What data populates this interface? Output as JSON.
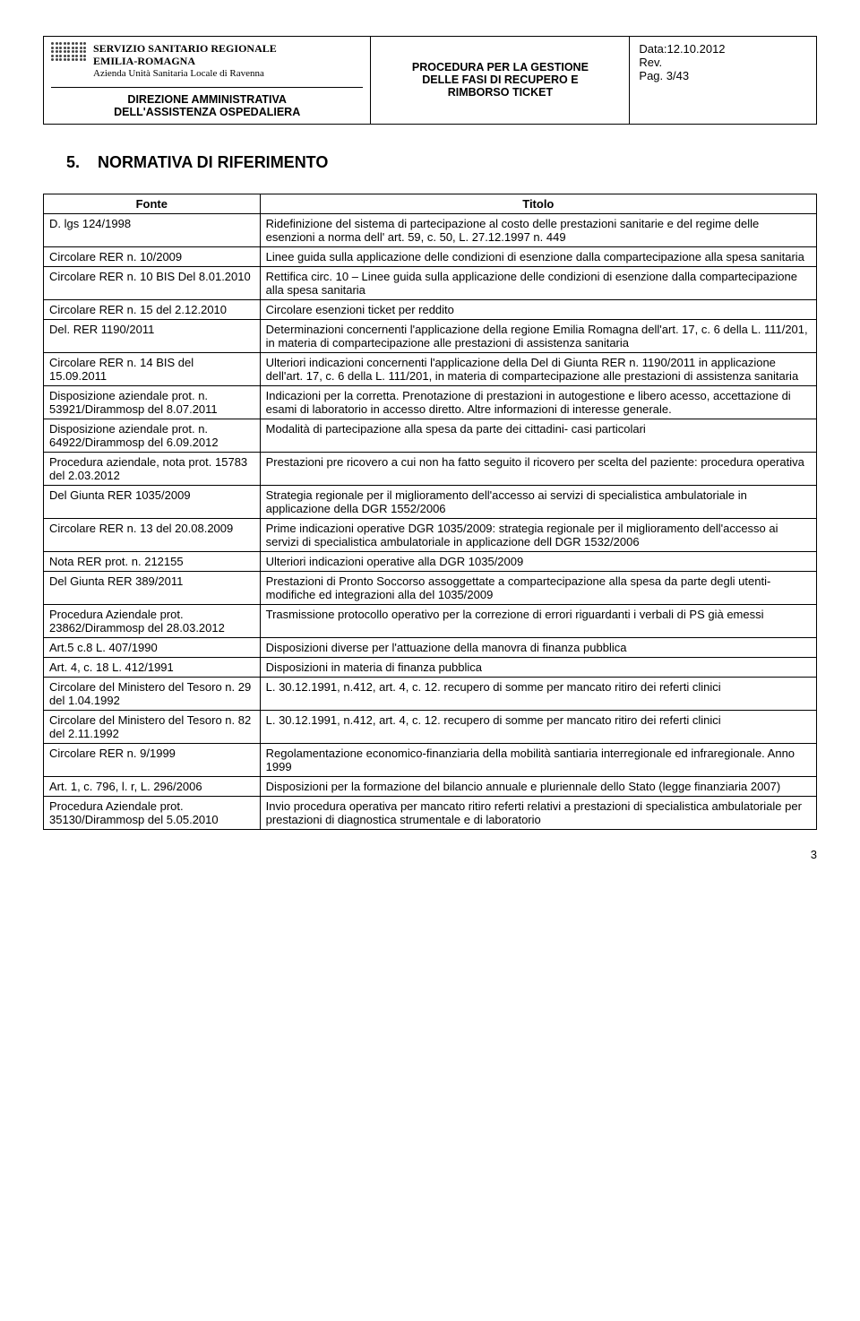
{
  "header": {
    "brand_line1": "SERVIZIO SANITARIO REGIONALE",
    "brand_line2": "EMILIA-ROMAGNA",
    "brand_line3": "Azienda Unità Sanitaria Locale di Ravenna",
    "dept_line1": "DIREZIONE AMMINISTRATIVA",
    "dept_line2": "DELL'ASSISTENZA OSPEDALIERA",
    "doc_title_line1": "PROCEDURA PER LA GESTIONE",
    "doc_title_line2": "DELLE FASI DI RECUPERO E",
    "doc_title_line3": "RIMBORSO TICKET",
    "date_label": "Data:12.10.2012",
    "rev_label": "Rev.",
    "page_label": "Pag. 3/43"
  },
  "section_number": "5.",
  "section_title": "NORMATIVA DI RIFERIMENTO",
  "table": {
    "col_fonte": "Fonte",
    "col_titolo": "Titolo",
    "rows": [
      {
        "fonte": "D. lgs 124/1998",
        "titolo": "Ridefinizione del sistema di partecipazione al costo delle prestazioni sanitarie e del regime delle esenzioni a norma dell' art. 59, c. 50, L. 27.12.1997 n. 449"
      },
      {
        "fonte": "Circolare RER n. 10/2009",
        "titolo": "Linee guida sulla applicazione delle condizioni di esenzione dalla compartecipazione alla spesa sanitaria"
      },
      {
        "fonte": "Circolare RER n. 10 BIS Del 8.01.2010",
        "titolo": "Rettifica circ. 10 – Linee guida sulla applicazione delle condizioni di esenzione dalla compartecipazione alla spesa sanitaria"
      },
      {
        "fonte": "Circolare RER n. 15 del 2.12.2010",
        "titolo": "Circolare esenzioni ticket per reddito"
      },
      {
        "fonte": "Del. RER 1190/2011",
        "titolo": "Determinazioni concernenti l'applicazione della regione Emilia Romagna dell'art. 17, c. 6 della L. 111/201, in materia di compartecipazione alle prestazioni di assistenza sanitaria"
      },
      {
        "fonte": "Circolare RER n. 14 BIS del 15.09.2011",
        "titolo": "Ulteriori indicazioni concernenti l'applicazione della Del di Giunta RER n. 1190/2011 in applicazione dell'art. 17, c. 6 della L. 111/201, in materia di compartecipazione alle prestazioni di assistenza sanitaria"
      },
      {
        "fonte": "Disposizione aziendale prot. n. 53921/Dirammosp del 8.07.2011",
        "titolo": "Indicazioni per la corretta. Prenotazione di prestazioni in autogestione e libero acesso, accettazione di esami di laboratorio in accesso diretto. Altre informazioni di interesse generale."
      },
      {
        "fonte": "Disposizione aziendale prot. n. 64922/Dirammosp del 6.09.2012",
        "titolo": "Modalità di partecipazione alla spesa da parte dei cittadini- casi particolari"
      },
      {
        "fonte": "Procedura aziendale, nota prot. 15783 del 2.03.2012",
        "titolo": "Prestazioni pre ricovero a cui non ha fatto seguito il ricovero per scelta del paziente: procedura operativa"
      },
      {
        "fonte": "Del Giunta RER 1035/2009",
        "titolo": "Strategia regionale per il miglioramento dell'accesso ai servizi di specialistica ambulatoriale in applicazione della DGR 1552/2006"
      },
      {
        "fonte": "Circolare RER n. 13 del 20.08.2009",
        "titolo": "Prime indicazioni operative  DGR 1035/2009: strategia regionale per il miglioramento dell'accesso ai servizi di specialistica ambulatoriale in applicazione dell DGR 1532/2006"
      },
      {
        "fonte": "Nota RER prot. n. 212155",
        "titolo": "Ulteriori indicazioni operative alla DGR 1035/2009"
      },
      {
        "fonte": "Del Giunta RER 389/2011",
        "titolo": "Prestazioni di Pronto Soccorso  assoggettate a compartecipazione alla spesa da parte degli utenti- modifiche ed integrazioni alla del 1035/2009"
      },
      {
        "fonte": "Procedura Aziendale prot. 23862/Dirammosp del 28.03.2012",
        "titolo": "Trasmissione protocollo operativo per la correzione di errori riguardanti i verbali di PS già emessi"
      },
      {
        "fonte": "Art.5 c.8 L. 407/1990",
        "titolo": "Disposizioni diverse per l'attuazione della manovra di finanza pubblica"
      },
      {
        "fonte": "Art. 4, c. 18 L. 412/1991",
        "titolo": "Disposizioni in materia di finanza pubblica"
      },
      {
        "fonte": "Circolare del Ministero del Tesoro n. 29 del 1.04.1992",
        "titolo": "L. 30.12.1991, n.412, art. 4, c. 12. recupero di somme per mancato ritiro dei referti clinici"
      },
      {
        "fonte": "Circolare del Ministero del Tesoro n. 82 del 2.11.1992",
        "titolo": "L. 30.12.1991, n.412, art. 4, c. 12. recupero di somme per mancato ritiro dei referti clinici"
      },
      {
        "fonte": "Circolare RER n. 9/1999",
        "titolo": "Regolamentazione economico-finanziaria della mobilità santiaria interregionale ed infraregionale. Anno 1999"
      },
      {
        "fonte": "Art. 1, c. 796, l. r, L. 296/2006",
        "titolo": "Disposizioni per la formazione del bilancio annuale e pluriennale dello Stato (legge finanziaria 2007)"
      },
      {
        "fonte": "Procedura Aziendale prot. 35130/Dirammosp del 5.05.2010",
        "titolo": "Invio procedura operativa per mancato ritiro referti relativi a prestazioni di specialistica ambulatoriale per prestazioni di diagnostica strumentale e di laboratorio"
      }
    ]
  },
  "page_number": "3"
}
